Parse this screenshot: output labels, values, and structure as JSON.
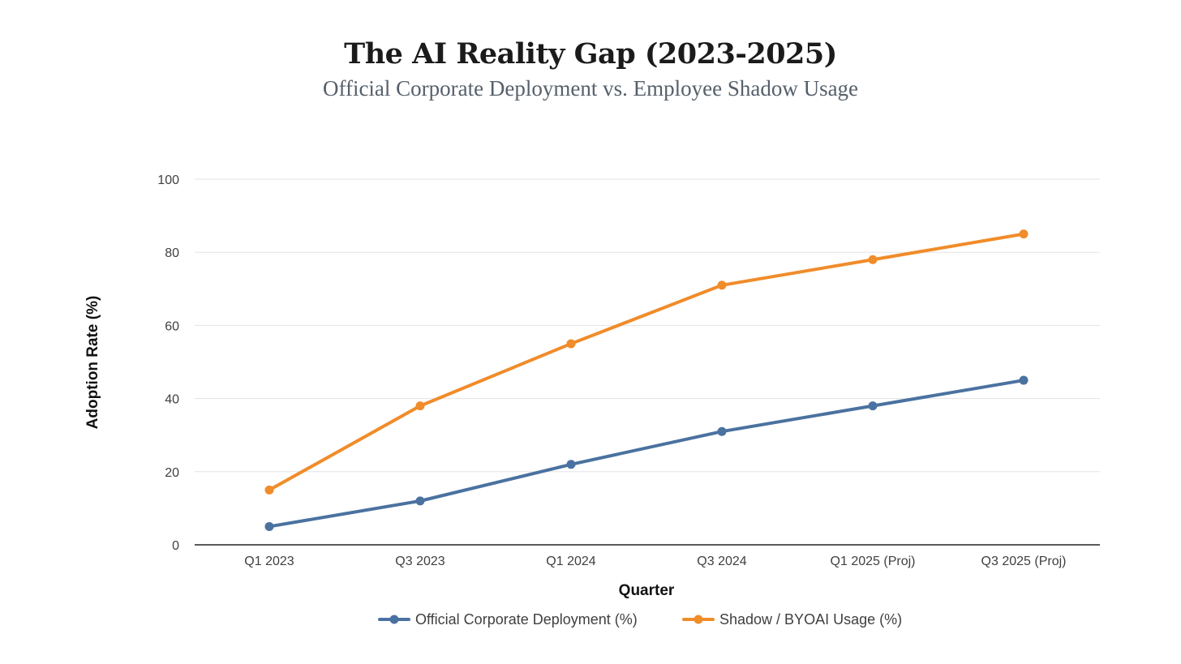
{
  "chart_data": {
    "type": "line",
    "title": "The AI Reality Gap (2023-2025)",
    "subtitle": "Official Corporate Deployment vs. Employee Shadow Usage",
    "xlabel": "Quarter",
    "ylabel": "Adoption Rate (%)",
    "categories": [
      "Q1 2023",
      "Q3 2023",
      "Q1 2024",
      "Q3 2024",
      "Q1 2025 (Proj)",
      "Q3 2025 (Proj)"
    ],
    "ylim": [
      0,
      100
    ],
    "yticks": [
      0,
      20,
      40,
      60,
      80,
      100
    ],
    "grid": true,
    "legend_position": "bottom",
    "series": [
      {
        "name": "Official Corporate Deployment (%)",
        "color": "#4a72a0",
        "values": [
          5,
          12,
          22,
          31,
          38,
          45
        ]
      },
      {
        "name": "Shadow / BYOAI Usage (%)",
        "color": "#f08c2a",
        "values": [
          15,
          38,
          55,
          71,
          78,
          85
        ]
      }
    ]
  }
}
